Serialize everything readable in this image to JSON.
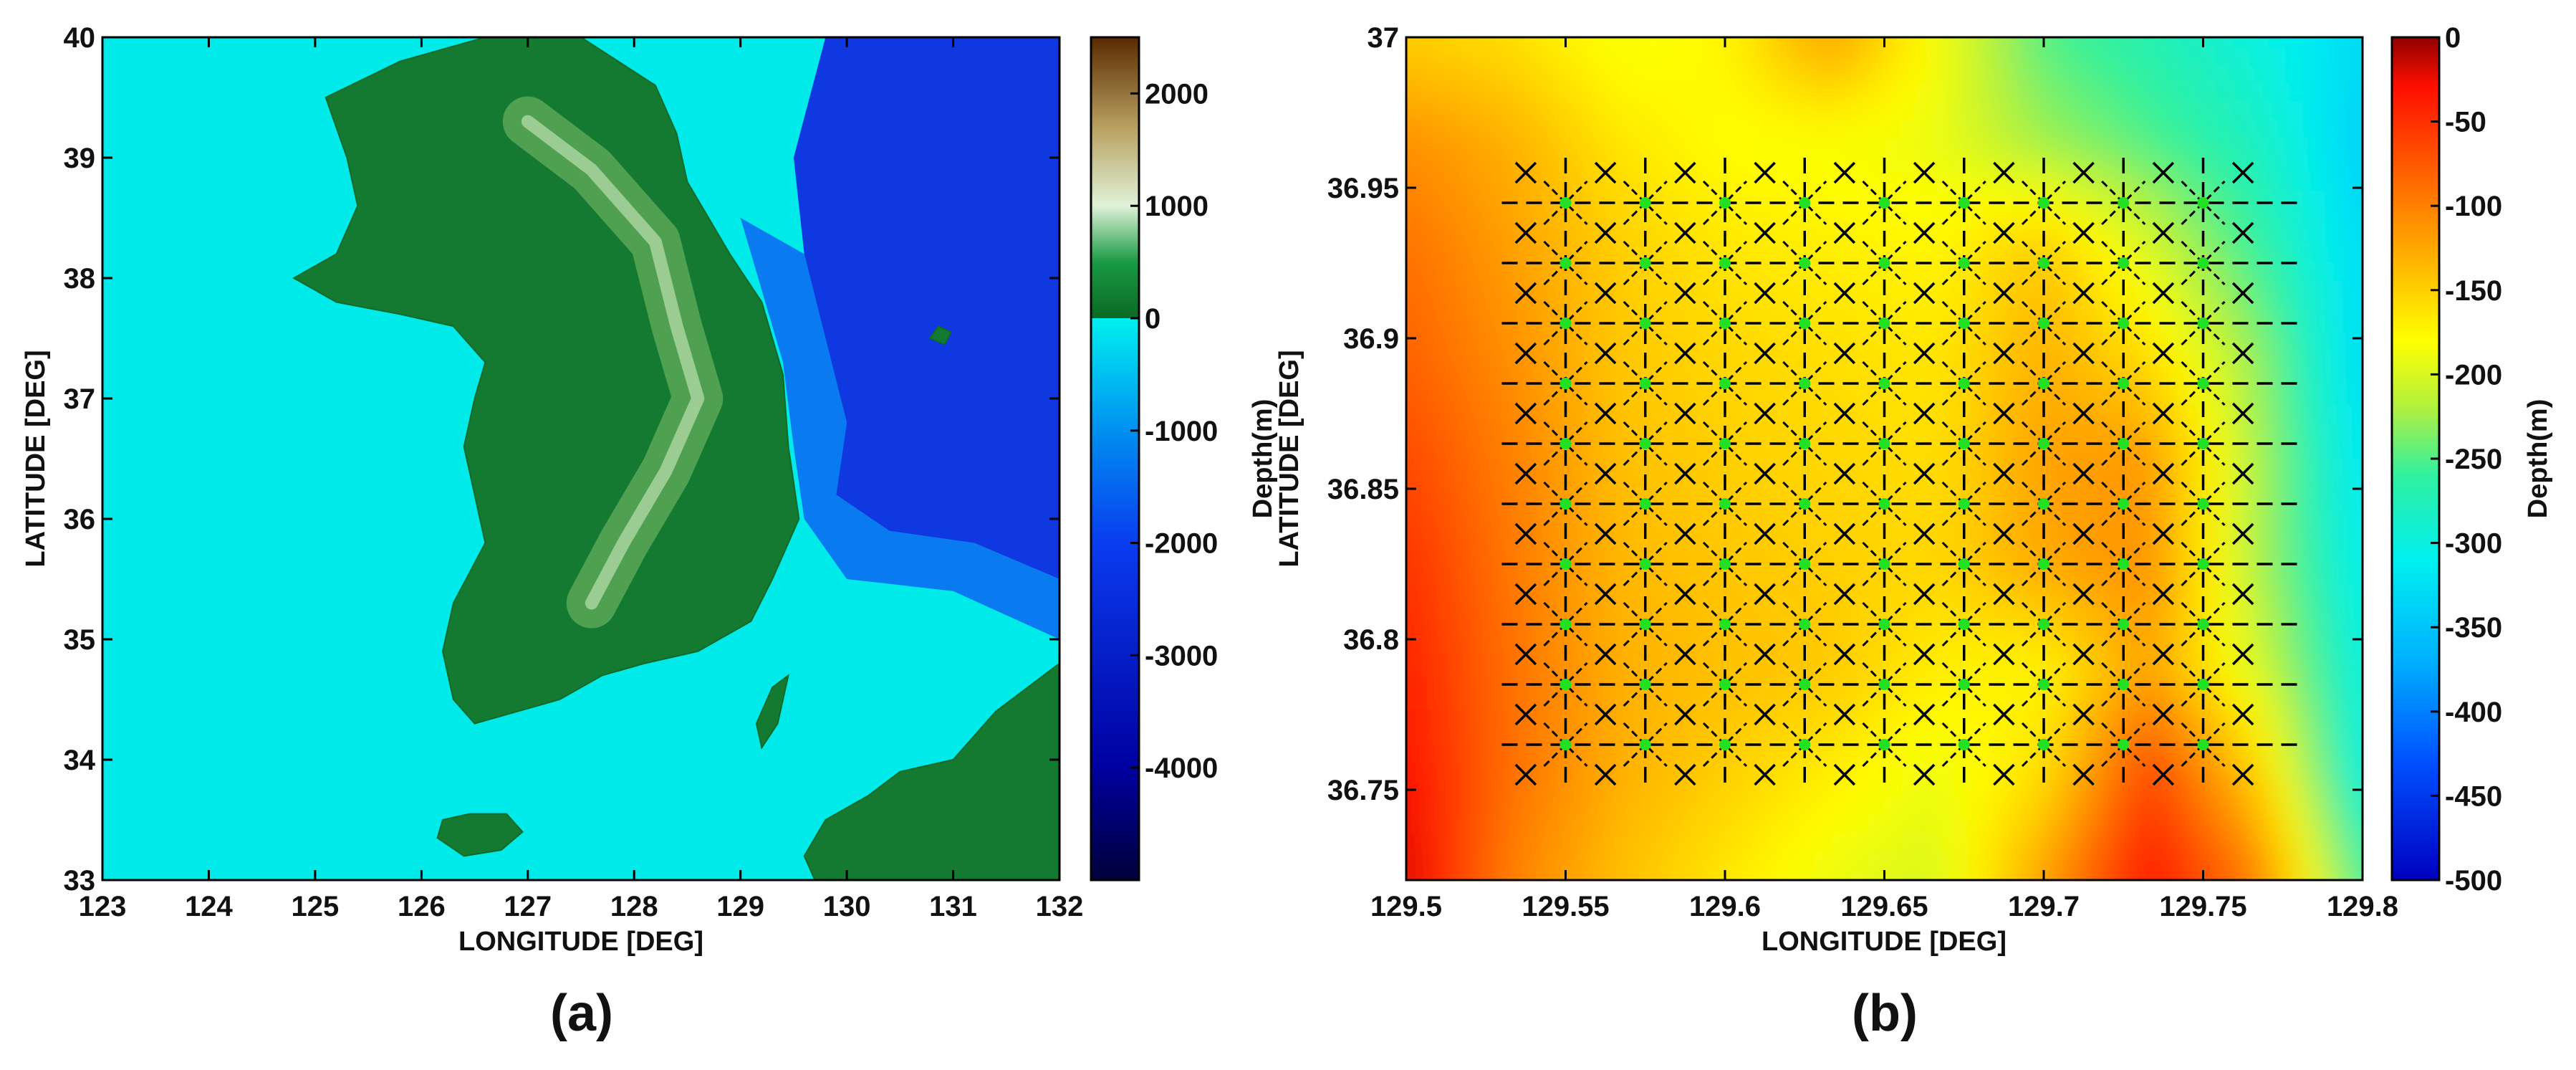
{
  "colors": {
    "ocean_shallow": "#00eaea",
    "ocean_deep": "#0016b0",
    "land_low": "#0b7a2a",
    "land_high": "#d8eec8",
    "grid_line": "#000000",
    "grid_node": "#22e022"
  },
  "chart_data": [
    {
      "id": "a",
      "type": "heatmap",
      "panel_label": "(a)",
      "xlabel": "LONGITUDE [DEG]",
      "ylabel": "LATITUDE [DEG]",
      "xlim": [
        123,
        132
      ],
      "ylim": [
        33,
        40
      ],
      "xticks": [
        123,
        124,
        125,
        126,
        127,
        128,
        129,
        130,
        131,
        132
      ],
      "yticks": [
        33,
        34,
        35,
        36,
        37,
        38,
        39,
        40
      ],
      "colorbar": {
        "label": "Depth(m)",
        "range": [
          -5000,
          2500
        ],
        "ticks": [
          2000,
          1000,
          0,
          -1000,
          -2000,
          -3000,
          -4000
        ],
        "stops": [
          {
            "value": -5000,
            "color": "#00003a"
          },
          {
            "value": -4000,
            "color": "#0000a0"
          },
          {
            "value": -2000,
            "color": "#0a3cf0"
          },
          {
            "value": -1000,
            "color": "#0090f0"
          },
          {
            "value": -1,
            "color": "#00f0f0"
          },
          {
            "value": 0,
            "color": "#0a6a24"
          },
          {
            "value": 500,
            "color": "#1a9a44"
          },
          {
            "value": 1000,
            "color": "#dff2d8"
          },
          {
            "value": 1700,
            "color": "#b8a060"
          },
          {
            "value": 2500,
            "color": "#5a2a00"
          }
        ]
      },
      "region_polygons": [
        {
          "kind": "land",
          "name": "korean-peninsula",
          "points": [
            [
              124.8,
              38.0
            ],
            [
              125.2,
              38.2
            ],
            [
              125.4,
              38.6
            ],
            [
              125.3,
              39.0
            ],
            [
              125.1,
              39.5
            ],
            [
              125.8,
              39.8
            ],
            [
              126.6,
              40.0
            ],
            [
              127.5,
              40.0
            ],
            [
              128.2,
              39.6
            ],
            [
              128.4,
              39.2
            ],
            [
              128.5,
              38.8
            ],
            [
              128.9,
              38.2
            ],
            [
              129.2,
              37.8
            ],
            [
              129.4,
              37.2
            ],
            [
              129.45,
              36.6
            ],
            [
              129.55,
              36.0
            ],
            [
              129.3,
              35.5
            ],
            [
              129.1,
              35.15
            ],
            [
              128.6,
              34.9
            ],
            [
              128.1,
              34.8
            ],
            [
              127.7,
              34.7
            ],
            [
              127.3,
              34.5
            ],
            [
              126.9,
              34.4
            ],
            [
              126.5,
              34.3
            ],
            [
              126.3,
              34.5
            ],
            [
              126.2,
              34.9
            ],
            [
              126.3,
              35.3
            ],
            [
              126.6,
              35.8
            ],
            [
              126.5,
              36.2
            ],
            [
              126.4,
              36.6
            ],
            [
              126.5,
              37.0
            ],
            [
              126.6,
              37.3
            ],
            [
              126.3,
              37.6
            ],
            [
              125.8,
              37.7
            ],
            [
              125.2,
              37.8
            ]
          ]
        },
        {
          "kind": "land",
          "name": "jeju-island",
          "points": [
            [
              126.15,
              33.35
            ],
            [
              126.4,
              33.2
            ],
            [
              126.75,
              33.25
            ],
            [
              126.95,
              33.4
            ],
            [
              126.8,
              33.55
            ],
            [
              126.45,
              33.55
            ],
            [
              126.2,
              33.5
            ]
          ]
        },
        {
          "kind": "land",
          "name": "ulleungdo",
          "points": [
            [
              130.78,
              37.5
            ],
            [
              130.92,
              37.45
            ],
            [
              130.98,
              37.55
            ],
            [
              130.86,
              37.6
            ]
          ]
        },
        {
          "kind": "land",
          "name": "tsushima",
          "points": [
            [
              129.2,
              34.1
            ],
            [
              129.35,
              34.3
            ],
            [
              129.45,
              34.7
            ],
            [
              129.3,
              34.6
            ],
            [
              129.15,
              34.3
            ]
          ]
        },
        {
          "kind": "land",
          "name": "kyushu",
          "points": [
            [
              132.0,
              33.0
            ],
            [
              132.0,
              34.8
            ],
            [
              131.4,
              34.4
            ],
            [
              131.0,
              34.0
            ],
            [
              130.5,
              33.9
            ],
            [
              130.2,
              33.7
            ],
            [
              129.8,
              33.5
            ],
            [
              129.6,
              33.2
            ],
            [
              129.7,
              33.0
            ]
          ]
        },
        {
          "kind": "deep",
          "name": "east-sea-deep-basin",
          "points": [
            [
              129.8,
              40.0
            ],
            [
              132.0,
              40.0
            ],
            [
              132.0,
              35.5
            ],
            [
              131.2,
              35.8
            ],
            [
              130.4,
              35.9
            ],
            [
              129.9,
              36.2
            ],
            [
              130.0,
              36.8
            ],
            [
              129.8,
              37.5
            ],
            [
              129.6,
              38.2
            ],
            [
              129.5,
              39.0
            ]
          ]
        },
        {
          "kind": "mid",
          "name": "east-sea-slope",
          "points": [
            [
              129.0,
              38.5
            ],
            [
              129.6,
              38.2
            ],
            [
              129.8,
              37.5
            ],
            [
              130.0,
              36.8
            ],
            [
              129.9,
              36.2
            ],
            [
              130.4,
              35.9
            ],
            [
              131.2,
              35.8
            ],
            [
              132.0,
              35.5
            ],
            [
              132.0,
              35.0
            ],
            [
              131.0,
              35.4
            ],
            [
              130.0,
              35.5
            ],
            [
              129.6,
              36.0
            ],
            [
              129.5,
              36.6
            ],
            [
              129.4,
              37.3
            ],
            [
              129.2,
              37.9
            ]
          ]
        }
      ]
    },
    {
      "id": "b",
      "type": "heatmap",
      "panel_label": "(b)",
      "xlabel": "LONGITUDE [DEG]",
      "ylabel": "LATITUDE [DEG]",
      "xlim": [
        129.5,
        129.8
      ],
      "ylim": [
        36.72,
        37.0
      ],
      "xticks": [
        129.5,
        129.55,
        129.6,
        129.65,
        129.7,
        129.75,
        129.8
      ],
      "xtick_labels": [
        "129.5",
        "129.55",
        "129.6",
        "129.65",
        "129.7",
        "129.75",
        "129.8"
      ],
      "yticks": [
        36.75,
        36.8,
        36.85,
        36.9,
        36.95,
        37.0
      ],
      "ytick_labels": [
        "36.75",
        "36.8",
        "36.85",
        "36.9",
        "36.95",
        "37"
      ],
      "colorbar": {
        "label": "Depth(m)",
        "range": [
          -500,
          0
        ],
        "ticks": [
          0,
          -50,
          -100,
          -150,
          -200,
          -250,
          -300,
          -350,
          -400,
          -450,
          -500
        ],
        "stops": [
          {
            "value": -500,
            "color": "#0000c0"
          },
          {
            "value": -430,
            "color": "#0050ff"
          },
          {
            "value": -370,
            "color": "#00b0ff"
          },
          {
            "value": -310,
            "color": "#00f0f0"
          },
          {
            "value": -260,
            "color": "#30f0a0"
          },
          {
            "value": -220,
            "color": "#b0f040"
          },
          {
            "value": -180,
            "color": "#ffff00"
          },
          {
            "value": -130,
            "color": "#ffb000"
          },
          {
            "value": -80,
            "color": "#ff6000"
          },
          {
            "value": -30,
            "color": "#ff1000"
          },
          {
            "value": 0,
            "color": "#900000"
          }
        ]
      },
      "depth_field": {
        "lon": [
          129.5,
          129.533,
          129.567,
          129.6,
          129.633,
          129.667,
          129.7,
          129.733,
          129.767,
          129.8
        ],
        "lat": [
          37.0,
          36.965,
          36.93,
          36.895,
          36.86,
          36.825,
          36.79,
          36.755,
          36.72
        ],
        "values": [
          [
            -150,
            -160,
            -185,
            -175,
            -120,
            -185,
            -250,
            -270,
            -300,
            -330
          ],
          [
            -110,
            -130,
            -165,
            -180,
            -185,
            -190,
            -225,
            -250,
            -280,
            -340
          ],
          [
            -90,
            -120,
            -150,
            -165,
            -170,
            -175,
            -145,
            -200,
            -260,
            -330
          ],
          [
            -80,
            -110,
            -145,
            -155,
            -160,
            -165,
            -130,
            -160,
            -230,
            -330
          ],
          [
            -65,
            -100,
            -140,
            -150,
            -155,
            -160,
            -120,
            -115,
            -220,
            -320
          ],
          [
            -50,
            -95,
            -135,
            -145,
            -150,
            -155,
            -125,
            -110,
            -220,
            -310
          ],
          [
            -40,
            -90,
            -130,
            -140,
            -145,
            -170,
            -175,
            -120,
            -200,
            -300
          ],
          [
            -30,
            -90,
            -130,
            -150,
            -170,
            -190,
            -160,
            -60,
            -150,
            -300
          ],
          [
            -20,
            -100,
            -140,
            -165,
            -190,
            -200,
            -120,
            -30,
            -100,
            -260
          ]
        ]
      },
      "grid": {
        "lon_lines": [
          129.53,
          129.55,
          129.575,
          129.6,
          129.625,
          129.65,
          129.675,
          129.7,
          129.725,
          129.75,
          129.77
        ],
        "lat_lines": [
          36.945,
          36.925,
          36.905,
          36.885,
          36.865,
          36.845,
          36.825,
          36.805,
          36.785,
          36.765
        ],
        "node_lons": [
          129.55,
          129.575,
          129.6,
          129.625,
          129.65,
          129.675,
          129.7,
          129.725,
          129.75
        ],
        "node_lats": [
          36.945,
          36.925,
          36.905,
          36.885,
          36.865,
          36.845,
          36.825,
          36.805,
          36.785,
          36.765
        ]
      }
    }
  ]
}
